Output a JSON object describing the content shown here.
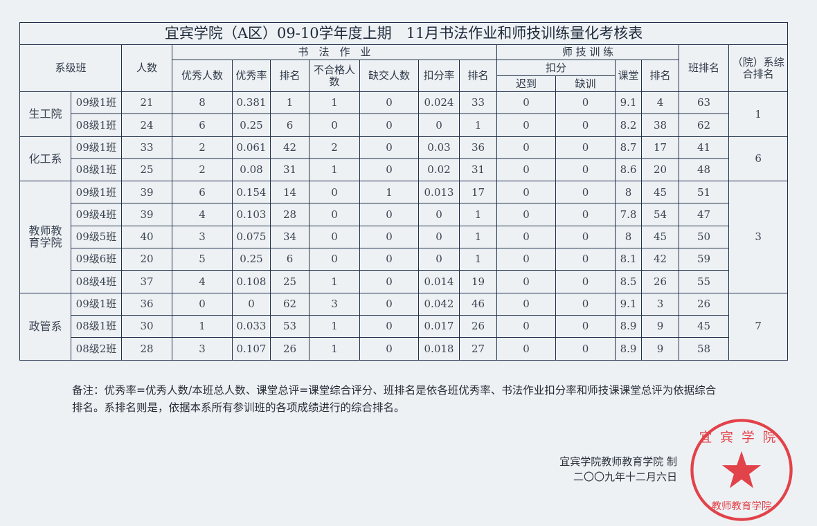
{
  "title": "宜宾学院（A区）09-10学年度上期　11月书法作业和师技训练量化考核表",
  "headers": {
    "dept_class": "系级班",
    "count": "人数",
    "calligraphy": "书　法　作　业",
    "teacher_skill": "师 技 训 练",
    "excellent_count": "优秀人数",
    "excellent_rate": "优秀率",
    "rank": "排名",
    "fail_count": "不合格人数",
    "missing_count": "缺交人数",
    "deduct_rate": "扣分率",
    "rank2": "排名",
    "deduct": "扣分",
    "late": "迟到",
    "absent": "缺训",
    "classroom": "课堂",
    "rank3": "排名",
    "class_rank": "班排名",
    "dept_rank": "（院）系综合排名"
  },
  "departments": [
    {
      "name": "生工院",
      "dept_rank": "1",
      "rows": [
        [
          "09级1班",
          "21",
          "8",
          "0.381",
          "1",
          "1",
          "0",
          "0.024",
          "33",
          "0",
          "0",
          "9.1",
          "4",
          "63"
        ],
        [
          "08级1班",
          "24",
          "6",
          "0.25",
          "6",
          "0",
          "0",
          "0",
          "1",
          "0",
          "0",
          "8.2",
          "38",
          "62"
        ]
      ]
    },
    {
      "name": "化工系",
      "dept_rank": "6",
      "rows": [
        [
          "09级1班",
          "33",
          "2",
          "0.061",
          "42",
          "2",
          "0",
          "0.03",
          "36",
          "0",
          "0",
          "8.7",
          "17",
          "41"
        ],
        [
          "08级1班",
          "25",
          "2",
          "0.08",
          "31",
          "1",
          "0",
          "0.02",
          "31",
          "0",
          "0",
          "8.6",
          "20",
          "48"
        ]
      ]
    },
    {
      "name": "教师教育学院",
      "dept_rank": "3",
      "rows": [
        [
          "09级1班",
          "39",
          "6",
          "0.154",
          "14",
          "0",
          "1",
          "0.013",
          "17",
          "0",
          "0",
          "8",
          "45",
          "51"
        ],
        [
          "09级4班",
          "39",
          "4",
          "0.103",
          "28",
          "0",
          "0",
          "0",
          "1",
          "0",
          "0",
          "7.8",
          "54",
          "47"
        ],
        [
          "09级5班",
          "40",
          "3",
          "0.075",
          "34",
          "0",
          "0",
          "0",
          "1",
          "0",
          "0",
          "8",
          "45",
          "50"
        ],
        [
          "09级6班",
          "20",
          "5",
          "0.25",
          "6",
          "0",
          "0",
          "0",
          "1",
          "0",
          "0",
          "8.1",
          "42",
          "59"
        ],
        [
          "08级4班",
          "37",
          "4",
          "0.108",
          "25",
          "1",
          "0",
          "0.014",
          "19",
          "0",
          "0",
          "8.5",
          "26",
          "55"
        ]
      ]
    },
    {
      "name": "政管系",
      "dept_rank": "7",
      "rows": [
        [
          "09级1班",
          "36",
          "0",
          "0",
          "62",
          "3",
          "0",
          "0.042",
          "46",
          "0",
          "0",
          "9.1",
          "3",
          "26"
        ],
        [
          "08级1班",
          "30",
          "1",
          "0.033",
          "53",
          "1",
          "0",
          "0.017",
          "26",
          "0",
          "0",
          "8.9",
          "9",
          "45"
        ],
        [
          "08级2班",
          "28",
          "3",
          "0.107",
          "26",
          "1",
          "0",
          "0.018",
          "27",
          "0",
          "0",
          "8.9",
          "9",
          "58"
        ]
      ]
    }
  ],
  "note": "备注：优秀率=优秀人数/本班总人数、课堂总评=课堂综合评分、班排名是依各班优秀率、书法作业扣分率和师技课课堂总评为依据综合排名。系排名则是，依据本系所有参训班的各项成绩进行的综合排名。",
  "signature": {
    "org": "宜宾学院教师教育学院 制",
    "date": "二〇〇九年十二月六日"
  },
  "stamp": {
    "top_text": "宜宾学院",
    "bottom_text": "教师教育学院",
    "color": "#e0242c"
  }
}
